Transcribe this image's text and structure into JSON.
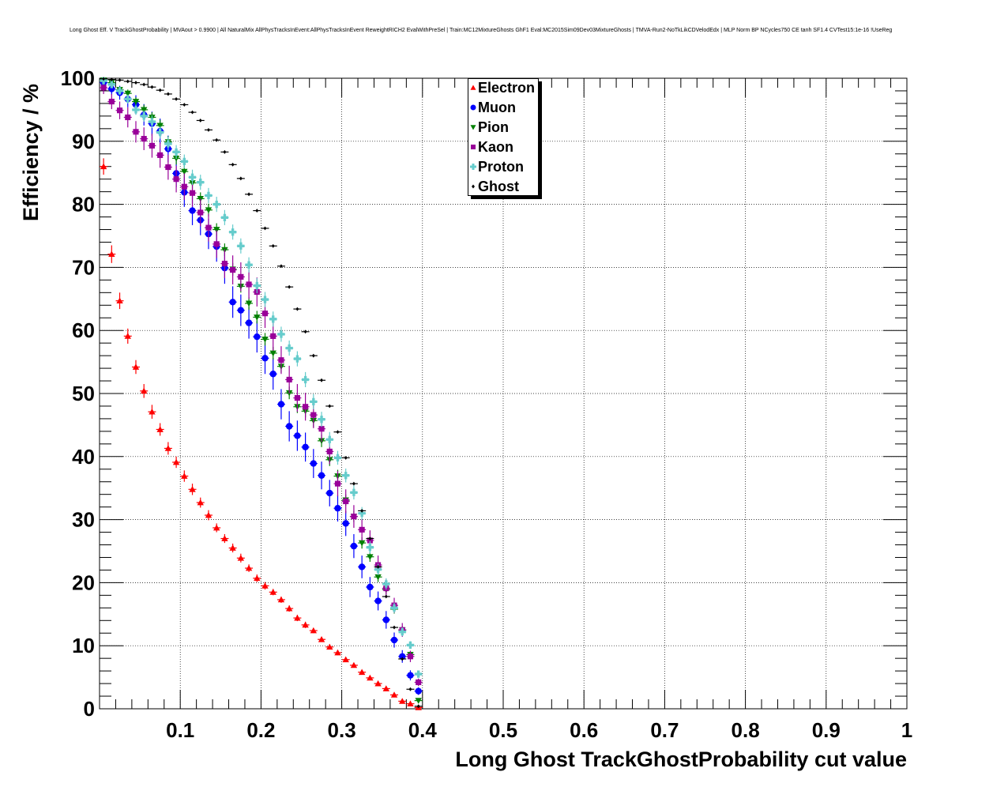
{
  "chart_data": {
    "type": "scatter",
    "title": "Long Ghost Eff. V TrackGhostProbability | MVAout > 0.9900 | All NaturalMix AllPhysTracksInEvent:AllPhysTracksInEvent ReweightRICH2 EvalWithPreSel | Train:MC12MixtureGhosts GhF1 Eval:MC2015Sim09Dev03MixtureGhosts | TMVA-Run2-NoTkLikCDVelodEdx | MLP Norm BP NCycles750 CE tanh SF1.4 CVTest15:1e-16 !UseReg",
    "xlabel": "Long Ghost TrackGhostProbability cut value",
    "ylabel": "Efficiency / %",
    "xlim": [
      0,
      1
    ],
    "ylim": [
      0,
      100
    ],
    "x_ticks": [
      "0.1",
      "0.2",
      "0.3",
      "0.4",
      "0.5",
      "0.6",
      "0.7",
      "0.8",
      "0.9",
      "1"
    ],
    "y_ticks": [
      "0",
      "10",
      "20",
      "30",
      "40",
      "50",
      "60",
      "70",
      "80",
      "90",
      "100"
    ],
    "grid": true,
    "legend_position": "top-center",
    "x": [
      0.005,
      0.015,
      0.025,
      0.035,
      0.045,
      0.055,
      0.065,
      0.075,
      0.085,
      0.095,
      0.105,
      0.115,
      0.125,
      0.135,
      0.145,
      0.155,
      0.165,
      0.175,
      0.185,
      0.195,
      0.205,
      0.215,
      0.225,
      0.235,
      0.245,
      0.255,
      0.265,
      0.275,
      0.285,
      0.295,
      0.305,
      0.315,
      0.325,
      0.335,
      0.345,
      0.355,
      0.365,
      0.375,
      0.385,
      0.395
    ],
    "series": [
      {
        "name": "Electron",
        "color": "#ff0000",
        "marker": "triangle",
        "values": [
          86.0,
          72.1,
          64.7,
          59.1,
          54.2,
          50.4,
          47.1,
          44.3,
          41.3,
          39.1,
          36.9,
          34.8,
          32.7,
          30.7,
          28.7,
          27.0,
          25.5,
          23.9,
          22.3,
          20.7,
          19.5,
          18.5,
          17.3,
          15.9,
          14.4,
          13.3,
          12.4,
          11.0,
          9.8,
          8.9,
          7.8,
          6.9,
          5.8,
          4.9,
          4.0,
          3.2,
          2.2,
          1.2,
          0.8,
          0.2
        ],
        "errors": [
          1.3,
          1.4,
          1.3,
          1.2,
          1.1,
          1.1,
          1.1,
          1.0,
          1.0,
          0.9,
          0.9,
          0.9,
          0.8,
          0.8,
          0.7,
          0.7,
          0.7,
          0.7,
          0.6,
          0.6,
          0.6,
          0.5,
          0.5,
          0.5,
          0.5,
          0.5,
          0.4,
          0.4,
          0.4,
          0.4,
          0.3,
          0.3,
          0.3,
          0.3,
          0.3,
          0.2,
          0.2,
          0.2,
          0.1,
          0.1
        ]
      },
      {
        "name": "Muon",
        "color": "#0000ff",
        "marker": "circle",
        "values": [
          99.3,
          98.3,
          97.7,
          96.7,
          95.8,
          94.2,
          92.8,
          91.6,
          88.8,
          84.9,
          81.9,
          79.0,
          77.5,
          75.3,
          73.3,
          69.9,
          64.5,
          63.2,
          61.2,
          59.0,
          55.6,
          53.1,
          48.3,
          44.8,
          43.3,
          41.5,
          38.9,
          37.0,
          34.2,
          31.8,
          29.4,
          25.8,
          22.5,
          19.3,
          17.1,
          14.1,
          10.9,
          8.3,
          5.3,
          2.8
        ],
        "errors": [
          0.7,
          0.9,
          1.1,
          1.3,
          1.5,
          1.7,
          1.9,
          2.0,
          2.1,
          2.2,
          2.3,
          2.3,
          2.4,
          2.4,
          2.4,
          2.5,
          2.5,
          2.5,
          2.5,
          2.5,
          2.5,
          2.5,
          2.4,
          2.4,
          2.4,
          2.3,
          2.3,
          2.2,
          2.1,
          2.1,
          2.0,
          1.9,
          1.8,
          1.6,
          1.5,
          1.4,
          1.2,
          1.0,
          0.8,
          0.6
        ]
      },
      {
        "name": "Pion",
        "color": "#008000",
        "marker": "triangle-down",
        "values": [
          99.7,
          99.3,
          98.2,
          97.6,
          96.3,
          95.0,
          93.8,
          92.5,
          89.9,
          87.3,
          85.2,
          83.4,
          80.9,
          79.1,
          76.0,
          72.8,
          69.7,
          67.0,
          64.3,
          62.1,
          58.6,
          56.4,
          54.3,
          50.1,
          47.9,
          47.2,
          45.7,
          42.5,
          39.5,
          36.9,
          33.1,
          30.5,
          26.3,
          24.1,
          20.9,
          18.9,
          15.8,
          12.5,
          8.6,
          1.3
        ],
        "errors": [
          0.3,
          0.4,
          0.5,
          0.6,
          0.7,
          0.8,
          0.8,
          0.9,
          0.9,
          1.0,
          1.0,
          1.0,
          1.0,
          1.0,
          1.0,
          1.0,
          1.0,
          1.0,
          1.0,
          1.0,
          1.0,
          1.0,
          1.0,
          1.0,
          1.0,
          1.0,
          1.0,
          1.0,
          1.0,
          1.0,
          0.9,
          0.9,
          0.9,
          0.8,
          0.8,
          0.7,
          0.7,
          0.6,
          0.5,
          0.3
        ]
      },
      {
        "name": "Kaon",
        "color": "#990099",
        "marker": "square",
        "values": [
          98.5,
          96.3,
          94.9,
          93.8,
          91.5,
          90.4,
          89.3,
          87.8,
          85.9,
          84.0,
          82.8,
          81.8,
          78.7,
          76.3,
          73.7,
          70.6,
          69.6,
          68.5,
          67.3,
          66.1,
          62.7,
          59.1,
          55.3,
          52.2,
          49.3,
          47.9,
          46.6,
          44.4,
          40.8,
          35.7,
          32.9,
          30.5,
          28.4,
          26.7,
          22.8,
          19.1,
          16.4,
          12.5,
          8.3,
          4.2
        ],
        "errors": [
          1.0,
          1.2,
          1.4,
          1.6,
          1.7,
          1.8,
          1.9,
          2.0,
          2.0,
          2.1,
          2.1,
          2.2,
          2.2,
          2.2,
          2.2,
          2.3,
          2.3,
          2.3,
          2.3,
          2.3,
          2.3,
          2.3,
          2.2,
          2.2,
          2.2,
          2.2,
          2.1,
          2.1,
          2.0,
          2.0,
          1.9,
          1.8,
          1.7,
          1.6,
          1.5,
          1.4,
          1.2,
          1.1,
          0.9,
          0.6
        ]
      },
      {
        "name": "Proton",
        "color": "#66cccc",
        "marker": "cross",
        "values": [
          99.6,
          99.0,
          98.0,
          96.7,
          95.0,
          94.0,
          93.1,
          91.4,
          89.6,
          88.3,
          86.8,
          84.3,
          83.5,
          81.4,
          80.0,
          77.9,
          75.6,
          73.4,
          70.4,
          67.1,
          64.9,
          61.8,
          59.4,
          57.2,
          55.5,
          52.2,
          48.7,
          45.9,
          42.7,
          39.8,
          37.0,
          34.3,
          31.0,
          25.6,
          22.1,
          19.8,
          16.0,
          12.2,
          10.1,
          5.5
        ],
        "errors": [
          0.4,
          0.5,
          0.6,
          0.7,
          0.8,
          0.9,
          1.0,
          1.0,
          1.1,
          1.1,
          1.1,
          1.2,
          1.2,
          1.2,
          1.2,
          1.2,
          1.2,
          1.2,
          1.2,
          1.2,
          1.2,
          1.2,
          1.2,
          1.2,
          1.2,
          1.2,
          1.2,
          1.2,
          1.2,
          1.1,
          1.1,
          1.1,
          1.0,
          1.0,
          0.9,
          0.9,
          0.8,
          0.7,
          0.6,
          0.4
        ]
      },
      {
        "name": "Ghost",
        "color": "#000000",
        "marker": "diamond",
        "values": [
          99.9,
          99.8,
          99.7,
          99.5,
          99.3,
          99.0,
          98.6,
          98.1,
          97.5,
          96.7,
          95.8,
          94.6,
          93.3,
          91.8,
          90.2,
          88.3,
          86.3,
          84.1,
          81.6,
          79.0,
          76.2,
          73.4,
          70.2,
          66.9,
          63.4,
          59.8,
          56.0,
          52.1,
          48.0,
          43.9,
          39.8,
          35.7,
          31.4,
          27.0,
          22.5,
          17.8,
          12.9,
          7.9,
          3.1,
          0.4
        ],
        "errors": [
          0.1,
          0.1,
          0.1,
          0.1,
          0.1,
          0.1,
          0.1,
          0.1,
          0.1,
          0.1,
          0.1,
          0.1,
          0.1,
          0.1,
          0.1,
          0.1,
          0.1,
          0.1,
          0.1,
          0.1,
          0.1,
          0.1,
          0.1,
          0.1,
          0.1,
          0.1,
          0.1,
          0.1,
          0.1,
          0.1,
          0.1,
          0.1,
          0.1,
          0.1,
          0.1,
          0.1,
          0.1,
          0.1,
          0.1,
          0.1
        ]
      }
    ]
  }
}
